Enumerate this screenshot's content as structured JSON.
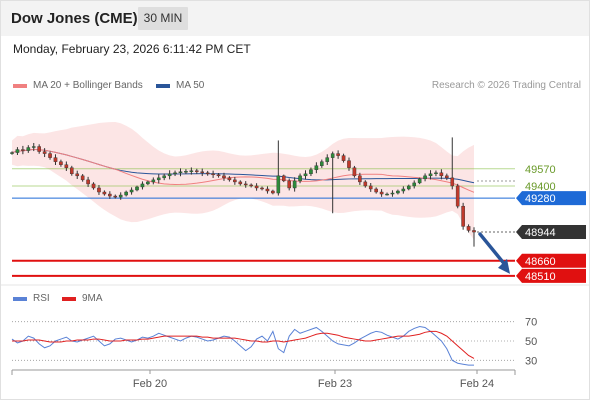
{
  "header": {
    "title": "Dow Jones (CME)",
    "timeframe": "30 MIN",
    "datetime": "Monday, February 23, 2026 6:11:42 PM CET"
  },
  "legend": {
    "bollinger_label": "MA 20 + Bollinger Bands",
    "bollinger_color": "#f08080",
    "ma50_label": "MA 50",
    "ma50_color": "#2a5599",
    "credit": "Research © 2026 Trading Central"
  },
  "rsi_legend": {
    "rsi_label": "RSI",
    "rsi_color": "#5a82d6",
    "ma_label": "9MA",
    "ma_color": "#e02020"
  },
  "chart_data": {
    "type": "candlestick",
    "x_ticks": [
      "Feb 20",
      "Feb 23",
      "Feb 24"
    ],
    "price_ylim": [
      48450,
      50250
    ],
    "levels": [
      {
        "value": 49570,
        "label": "49570",
        "kind": "resistance",
        "color": "#8ac24a"
      },
      {
        "value": 49400,
        "label": "49400",
        "kind": "resistance",
        "color": "#8ac24a"
      },
      {
        "value": 49280,
        "label": "49280",
        "kind": "pivot",
        "color": "#1e6ad6"
      },
      {
        "value": 48944,
        "label": "48944",
        "kind": "last_price",
        "color": "#333333"
      },
      {
        "value": 48660,
        "label": "48660",
        "kind": "support",
        "color": "#e01010"
      },
      {
        "value": 48510,
        "label": "48510",
        "kind": "support",
        "color": "#e01010"
      }
    ],
    "forecast_arrow": {
      "from": 48944,
      "to": 48510,
      "direction": "down"
    },
    "closes": [
      49730,
      49760,
      49750,
      49780,
      49790,
      49740,
      49720,
      49680,
      49640,
      49610,
      49580,
      49520,
      49500,
      49460,
      49420,
      49380,
      49340,
      49320,
      49300,
      49290,
      49310,
      49340,
      49360,
      49390,
      49420,
      49440,
      49460,
      49480,
      49500,
      49520,
      49530,
      49540,
      49545,
      49550,
      49540,
      49530,
      49520,
      49510,
      49500,
      49480,
      49460,
      49440,
      49420,
      49410,
      49400,
      49380,
      49370,
      49350,
      49330,
      49500,
      49450,
      49380,
      49450,
      49500,
      49520,
      49560,
      49600,
      49640,
      49680,
      49720,
      49700,
      49650,
      49580,
      49500,
      49440,
      49400,
      49370,
      49340,
      49320,
      49320,
      49330,
      49350,
      49370,
      49400,
      49430,
      49470,
      49500,
      49520,
      49530,
      49500,
      49480,
      49400,
      49200,
      49000,
      48960,
      48944
    ],
    "rsi_levels": [
      70,
      50,
      30
    ],
    "rsi": [
      52,
      48,
      50,
      55,
      53,
      47,
      43,
      45,
      50,
      52,
      54,
      50,
      49,
      51,
      53,
      55,
      50,
      45,
      47,
      52,
      53,
      51,
      49,
      51,
      54,
      53,
      55,
      58,
      56,
      54,
      52,
      50,
      53,
      55,
      54,
      52,
      50,
      51,
      53,
      55,
      54,
      50,
      45,
      40,
      44,
      52,
      55,
      50,
      60,
      42,
      38,
      55,
      62,
      58,
      60,
      62,
      64,
      60,
      55,
      50,
      47,
      46,
      45,
      48,
      52,
      55,
      58,
      60,
      59,
      56,
      54,
      52,
      55,
      60,
      63,
      65,
      64,
      60,
      55,
      50,
      42,
      30,
      27,
      26,
      25,
      25
    ],
    "rsi_ma": [
      50,
      50,
      50,
      51,
      51,
      51,
      50,
      49,
      49,
      49,
      50,
      50,
      51,
      51,
      51,
      52,
      52,
      51,
      50,
      50,
      50,
      51,
      51,
      51,
      52,
      52,
      53,
      54,
      55,
      55,
      55,
      55,
      55,
      55,
      55,
      54,
      54,
      53,
      53,
      53,
      53,
      53,
      52,
      51,
      50,
      50,
      49,
      49,
      50,
      50,
      49,
      50,
      51,
      52,
      53,
      55,
      57,
      58,
      58,
      57,
      56,
      54,
      53,
      52,
      51,
      50,
      50,
      51,
      52,
      53,
      54,
      55,
      55,
      55,
      56,
      57,
      59,
      60,
      60,
      58,
      55,
      50,
      45,
      40,
      35,
      32
    ]
  }
}
